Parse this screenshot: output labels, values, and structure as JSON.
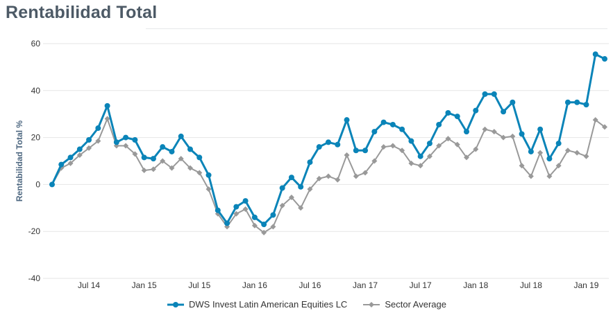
{
  "page": {
    "title": "Rentabilidad Total"
  },
  "chart_data": {
    "type": "line",
    "title": "Rentabilidad Total",
    "ylabel": "Rentabilidad Total %",
    "xlabel": "",
    "ylim": [
      -40,
      60
    ],
    "yticks": [
      60,
      40,
      20,
      0,
      -20,
      -40
    ],
    "grid": true,
    "legend_position": "bottom",
    "x_ticks": [
      {
        "label": "Jul 14",
        "index": 4
      },
      {
        "label": "Jan 15",
        "index": 10
      },
      {
        "label": "Jul 15",
        "index": 16
      },
      {
        "label": "Jan 16",
        "index": 22
      },
      {
        "label": "Jul 16",
        "index": 28
      },
      {
        "label": "Jan 17",
        "index": 34
      },
      {
        "label": "Jul 17",
        "index": 40
      },
      {
        "label": "Jan 18",
        "index": 46
      },
      {
        "label": "Jul 18",
        "index": 52
      },
      {
        "label": "Jan 19",
        "index": 58
      }
    ],
    "x_start": "Mar 14",
    "x_end": "Mar 19",
    "series": [
      {
        "name": "DWS Invest Latin American Equities LC",
        "color": "#0a84b8",
        "marker": "circle",
        "values": [
          0,
          8.5,
          11.5,
          15,
          19,
          24,
          33.5,
          18,
          20,
          19,
          11.5,
          11,
          16,
          14,
          20.5,
          15,
          11.5,
          4,
          -11,
          -16.5,
          -9.5,
          -7,
          -14,
          -17,
          -13,
          -1.5,
          3,
          -1,
          9.5,
          16,
          18,
          17,
          27.5,
          14.5,
          14.5,
          22.5,
          26.5,
          25.5,
          23.5,
          18.5,
          12,
          17.5,
          25.5,
          30.5,
          29,
          22.5,
          31.5,
          38.5,
          38.5,
          31,
          35,
          21.5,
          14,
          23.5,
          11,
          17.5,
          35,
          35,
          34,
          55.5,
          53.5
        ]
      },
      {
        "name": "Sector Average",
        "color": "#999999",
        "marker": "diamond",
        "values": [
          0,
          7,
          9,
          12.5,
          15.5,
          18.5,
          28,
          16.5,
          16.5,
          13,
          6,
          6.5,
          10,
          7,
          11,
          7,
          5,
          -2,
          -12.5,
          -18,
          -12.5,
          -10.5,
          -17.5,
          -20.5,
          -18,
          -9,
          -5.5,
          -10,
          -2,
          2.5,
          3.5,
          2,
          12.5,
          3.5,
          5,
          10,
          16,
          16.5,
          14.5,
          9,
          8,
          12,
          16.5,
          19.5,
          17,
          11.5,
          15,
          23.5,
          22.5,
          20,
          20.5,
          8,
          3.5,
          13.5,
          3.5,
          8,
          14.5,
          13.5,
          12,
          27.5,
          24.5
        ]
      }
    ]
  }
}
